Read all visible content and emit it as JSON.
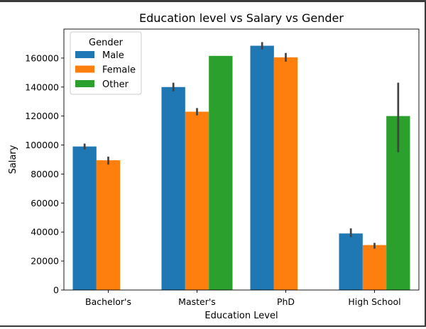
{
  "chart_data": {
    "type": "bar",
    "title": "Education level vs Salary vs Gender",
    "xlabel": "Education Level",
    "ylabel": "Salary",
    "ylim": [
      0,
      180000
    ],
    "yticks": [
      0,
      20000,
      40000,
      60000,
      80000,
      100000,
      120000,
      140000,
      160000
    ],
    "ytick_labels": [
      "0",
      "20000",
      "40000",
      "60000",
      "80000",
      "100000",
      "120000",
      "140000",
      "160000"
    ],
    "categories": [
      "Bachelor's",
      "Master's",
      "PhD",
      "High School"
    ],
    "legend": {
      "title": "Gender",
      "placement": "upper left"
    },
    "grid": false,
    "series": [
      {
        "name": "Male",
        "color": "#1f77b4",
        "values": [
          99000,
          140000,
          168500,
          39000
        ],
        "errors": [
          [
            97000,
            101000
          ],
          [
            137000,
            143000
          ],
          [
            166000,
            171000
          ],
          [
            36500,
            42500
          ]
        ]
      },
      {
        "name": "Female",
        "color": "#ff7f0e",
        "values": [
          89500,
          123000,
          160500,
          31000
        ],
        "errors": [
          [
            86500,
            92000
          ],
          [
            120500,
            125500
          ],
          [
            157500,
            163500
          ],
          [
            28500,
            32500
          ]
        ]
      },
      {
        "name": "Other",
        "color": "#2ca02c",
        "values": [
          null,
          161500,
          null,
          120000
        ],
        "errors": [
          null,
          null,
          null,
          [
            95000,
            143000
          ]
        ]
      }
    ]
  }
}
